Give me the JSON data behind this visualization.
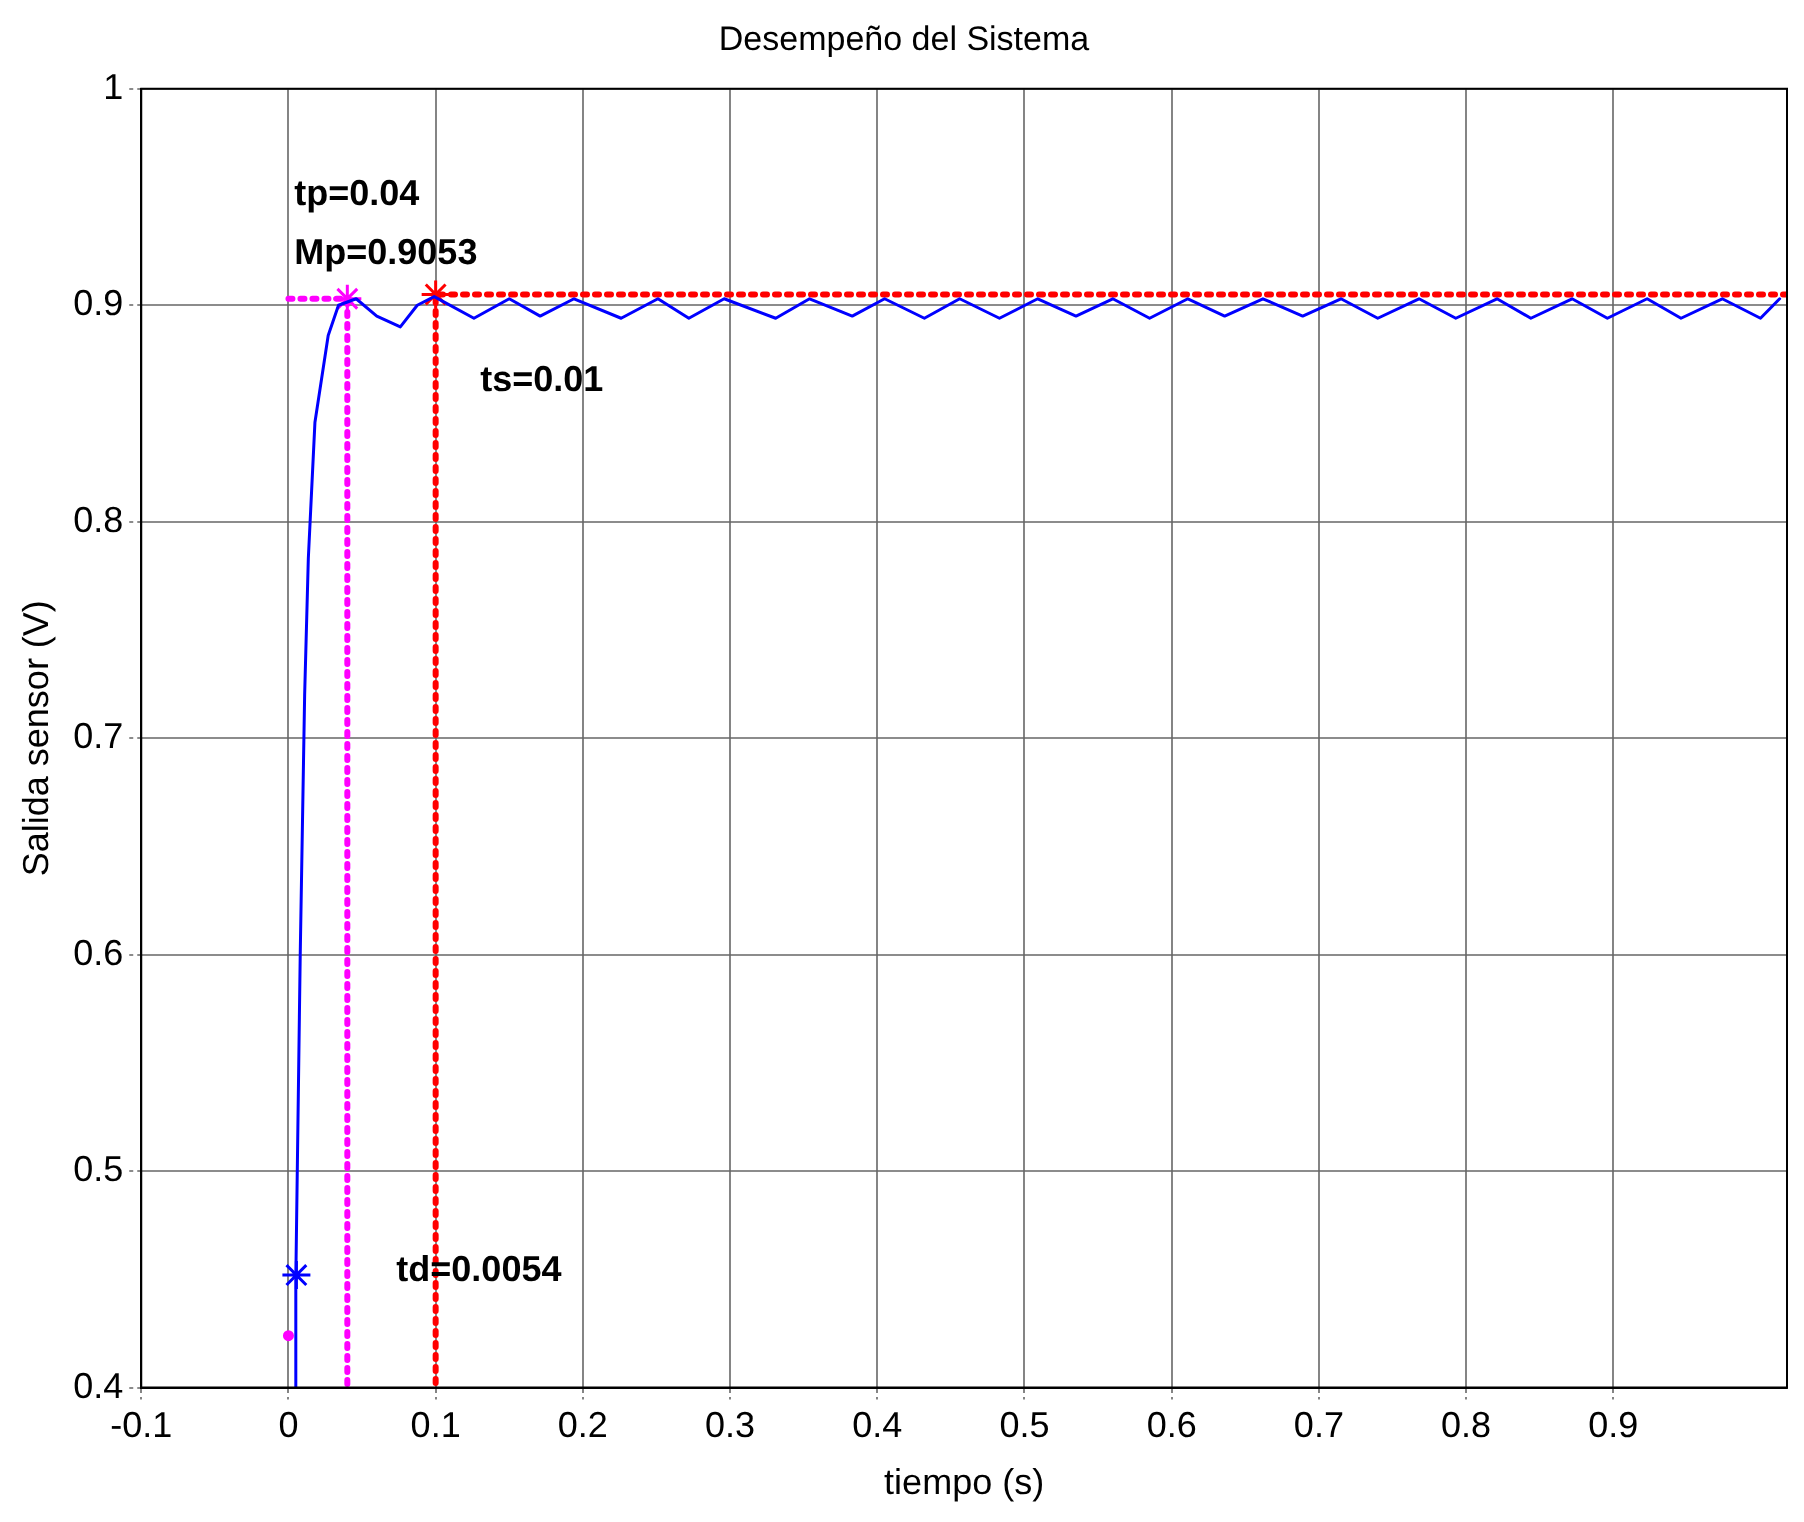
{
  "chart_data": {
    "type": "line",
    "title": "Desempeño del Sistema",
    "xlabel": "tiempo (s)",
    "ylabel": "Salida sensor (V)",
    "xlim": [
      -0.1,
      1.018
    ],
    "xticks": [
      -0.1,
      0,
      0.1,
      0.2,
      0.3,
      0.4,
      0.5,
      0.6,
      0.7,
      0.8,
      0.9
    ],
    "ylim": [
      0.4,
      1
    ],
    "yticks": [
      0.4,
      0.5,
      0.6,
      0.7,
      0.8,
      0.9,
      1
    ],
    "grid": true,
    "legend": false,
    "series": [
      {
        "color": "#0000ff",
        "line_style": "solid",
        "marker": "none",
        "x": [
          0.005,
          0.005,
          0.008,
          0.011,
          0.0135,
          0.018,
          0.027,
          0.034,
          0.046,
          0.06,
          0.076,
          0.0875,
          0.099,
          0.126,
          0.15,
          0.171,
          0.194,
          0.226,
          0.251,
          0.272,
          0.296,
          0.331,
          0.354,
          0.383,
          0.405,
          0.432,
          0.456,
          0.483,
          0.509,
          0.535,
          0.56,
          0.585,
          0.611,
          0.636,
          0.662,
          0.689,
          0.715,
          0.74,
          0.768,
          0.793,
          0.821,
          0.844,
          0.872,
          0.896,
          0.923,
          0.946,
          0.974,
          1.0,
          1.013
        ],
        "values": [
          0.4,
          0.45,
          0.6,
          0.72,
          0.783,
          0.846,
          0.886,
          0.9,
          0.903,
          0.895,
          0.89,
          0.9,
          0.904,
          0.894,
          0.903,
          0.895,
          0.903,
          0.894,
          0.903,
          0.894,
          0.903,
          0.894,
          0.903,
          0.895,
          0.903,
          0.894,
          0.903,
          0.894,
          0.903,
          0.895,
          0.903,
          0.894,
          0.903,
          0.895,
          0.903,
          0.895,
          0.903,
          0.894,
          0.903,
          0.894,
          0.903,
          0.894,
          0.903,
          0.894,
          0.903,
          0.894,
          0.903,
          0.894,
          0.903
        ]
      },
      {
        "color": "#ff00ff",
        "line_style": "dotted",
        "marker": "none",
        "x": [
          0,
          0.04,
          0.04
        ],
        "values": [
          0.903,
          0.903,
          0.4
        ]
      },
      {
        "color": "#ff0000",
        "line_style": "dotted",
        "marker": "none",
        "x": [
          1.018,
          0.1,
          0.1
        ],
        "values": [
          0.905,
          0.905,
          0.4
        ]
      },
      {
        "type": "scatter",
        "color": "#0000ff",
        "marker": "cross",
        "x": [
          0.0054
        ],
        "values": [
          0.452
        ]
      },
      {
        "type": "scatter",
        "color": "#ff00ff",
        "marker": "cross",
        "x": [
          0.04
        ],
        "values": [
          0.903
        ]
      },
      {
        "type": "scatter",
        "color": "#ff0000",
        "marker": "cross",
        "x": [
          0.1
        ],
        "values": [
          0.905
        ]
      },
      {
        "type": "scatter",
        "color": "#ff00ff",
        "marker": "circle",
        "x": [
          0
        ],
        "values": [
          0.424
        ]
      }
    ],
    "annotations": [
      "tp=0.04",
      "Mp=0.9053",
      "ts=0.01",
      "td=0.0054"
    ]
  }
}
